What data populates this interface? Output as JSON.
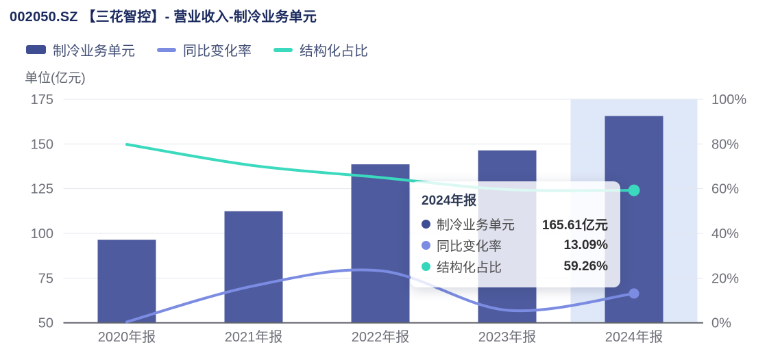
{
  "header": {
    "title": "002050.SZ 【三花智控】- 营业收入-制冷业务单元"
  },
  "legend": {
    "items": [
      {
        "label": "制冷业务单元",
        "type": "bar",
        "color": "#3f4d92"
      },
      {
        "label": "同比变化率",
        "type": "line",
        "color": "#7b8ce2"
      },
      {
        "label": "结构化占比",
        "type": "line",
        "color": "#3bd9bd"
      }
    ]
  },
  "axes": {
    "unit_label": "单位(亿元)",
    "left_ticks": [
      "175",
      "150",
      "125",
      "100",
      "75",
      "50"
    ],
    "right_ticks": [
      "100%",
      "80%",
      "60%",
      "40%",
      "20%",
      "0%"
    ],
    "x_labels": [
      "2020年报",
      "2021年报",
      "2022年报",
      "2023年报",
      "2024年报"
    ]
  },
  "tooltip": {
    "title": "2024年报",
    "rows": [
      {
        "label": "制冷业务单元",
        "value": "165.61亿元",
        "color": "#3f4d92"
      },
      {
        "label": "同比变化率",
        "value": "13.09%",
        "color": "#7b8ce2"
      },
      {
        "label": "结构化占比",
        "value": "59.26%",
        "color": "#35d7ba"
      }
    ]
  },
  "chart_data": {
    "type": "bar",
    "title": "002050.SZ 【三花智控】- 营业收入-制冷业务单元",
    "categories": [
      "2020年报",
      "2021年报",
      "2022年报",
      "2023年报",
      "2024年报"
    ],
    "series": [
      {
        "name": "制冷业务单元",
        "type": "bar",
        "axis": "left",
        "unit": "亿元",
        "color": "#4e5b9e",
        "values": [
          96.4,
          112.4,
          138.6,
          146.4,
          165.61
        ]
      },
      {
        "name": "同比变化率",
        "type": "line",
        "axis": "right",
        "unit": "%",
        "color": "#7b8ce2",
        "values": [
          0.4,
          16.5,
          23.3,
          5.6,
          13.09
        ]
      },
      {
        "name": "结构化占比",
        "type": "line",
        "axis": "right",
        "unit": "%",
        "color": "#3bd9bd",
        "values": [
          79.8,
          70.3,
          65.0,
          59.6,
          59.26
        ]
      }
    ],
    "left_axis": {
      "label": "单位(亿元)",
      "min": 50,
      "max": 175,
      "tick_step": 25
    },
    "right_axis": {
      "min": 0,
      "max": 100,
      "tick_step": 20,
      "format": "percent"
    },
    "highlight_band": {
      "category": "2024年报",
      "color": "#dfe8f8"
    },
    "markers": {
      "category": "2024年报",
      "series": [
        "结构化占比",
        "同比变化率"
      ]
    },
    "grid": true,
    "legend_position": "top"
  }
}
